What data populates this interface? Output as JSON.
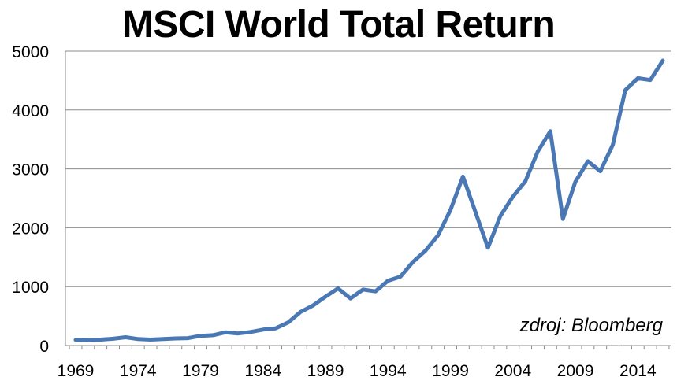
{
  "chart_data": {
    "type": "line",
    "title": "MSCI World Total Return",
    "xlabel": "",
    "ylabel": "",
    "source_note": "zdroj: Bloomberg",
    "xlim": [
      1969,
      2016
    ],
    "ylim": [
      0,
      5000
    ],
    "yticks": [
      "0",
      "1000",
      "2000",
      "3000",
      "4000",
      "5000"
    ],
    "xticks": [
      "1969",
      "1974",
      "1979",
      "1984",
      "1989",
      "1994",
      "1999",
      "2004",
      "2009",
      "2014"
    ],
    "grid": "horizontal",
    "line_color": "#4a78b4",
    "series": [
      {
        "name": "",
        "x": [
          1969,
          1970,
          1971,
          1972,
          1973,
          1974,
          1975,
          1976,
          1977,
          1978,
          1979,
          1980,
          1981,
          1982,
          1983,
          1984,
          1985,
          1986,
          1987,
          1988,
          1989,
          1990,
          1991,
          1992,
          1993,
          1994,
          1995,
          1996,
          1997,
          1998,
          1999,
          2000,
          2001,
          2002,
          2003,
          2004,
          2005,
          2006,
          2007,
          2008,
          2009,
          2010,
          2011,
          2012,
          2013,
          2014,
          2015,
          2016
        ],
        "values": [
          95,
          92,
          100,
          115,
          140,
          110,
          100,
          110,
          120,
          125,
          165,
          175,
          225,
          205,
          230,
          270,
          290,
          390,
          570,
          680,
          830,
          970,
          800,
          950,
          920,
          1100,
          1170,
          1420,
          1610,
          1870,
          2300,
          2870,
          2270,
          1660,
          2200,
          2530,
          2790,
          3300,
          3640,
          2150,
          2780,
          3130,
          2960,
          3410,
          4340,
          4540,
          4510,
          4840
        ]
      }
    ]
  }
}
